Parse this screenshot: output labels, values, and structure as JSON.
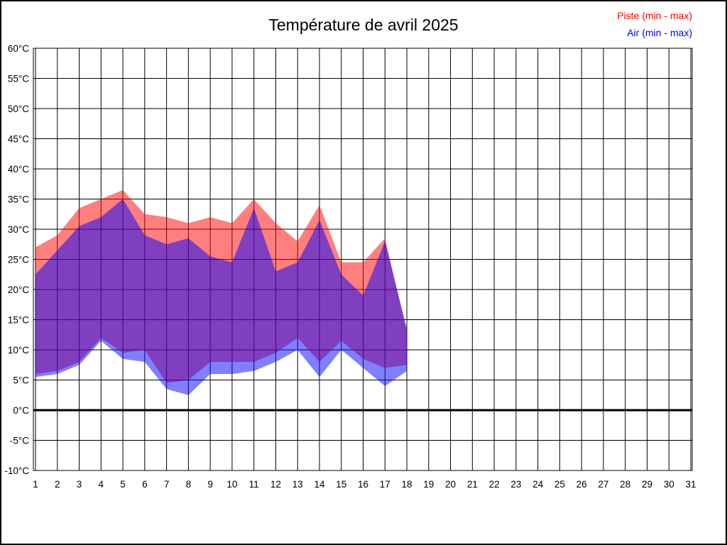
{
  "page": {
    "background": "#ffffff",
    "frame_color": "#000000"
  },
  "chart_data": {
    "type": "area",
    "title": "Température de avril 2025",
    "legend": [
      {
        "label": "Piste (min - max)",
        "color": "#ff0000"
      },
      {
        "label": "Air (min - max)",
        "color": "#0000ff"
      }
    ],
    "legend_position": "top-right",
    "grid": true,
    "ylim": [
      -10,
      60
    ],
    "y_step": 5,
    "y_ticks": [
      -10,
      -5,
      0,
      5,
      10,
      15,
      20,
      25,
      30,
      35,
      40,
      45,
      50,
      55,
      60
    ],
    "y_tick_labels": [
      "-10°C",
      "-5°C",
      "0°C",
      "5°C",
      "10°C",
      "15°C",
      "20°C",
      "25°C",
      "30°C",
      "35°C",
      "40°C",
      "45°C",
      "50°C",
      "55°C",
      "60°C"
    ],
    "xlim": [
      1,
      31
    ],
    "x_tick_labels": [
      "1",
      "2",
      "3",
      "4",
      "5",
      "6",
      "7",
      "8",
      "9",
      "10",
      "11",
      "12",
      "13",
      "14",
      "15",
      "16",
      "17",
      "18",
      "19",
      "20",
      "21",
      "22",
      "23",
      "24",
      "25",
      "26",
      "27",
      "28",
      "29",
      "30",
      "31"
    ],
    "days": [
      1,
      2,
      3,
      4,
      5,
      6,
      7,
      8,
      9,
      10,
      11,
      12,
      13,
      14,
      15,
      16,
      17,
      18
    ],
    "series": [
      {
        "name": "piste_min",
        "values": [
          6,
          6.5,
          8,
          12,
          9.5,
          10,
          4.5,
          5,
          8,
          8,
          8,
          9.5,
          12,
          8,
          11.5,
          8.5,
          7,
          7.5
        ]
      },
      {
        "name": "piste_max",
        "values": [
          27,
          29,
          33.5,
          35,
          36.5,
          32.5,
          32,
          31,
          32,
          31,
          35,
          31,
          28,
          34,
          24.5,
          24.5,
          28.5,
          13
        ]
      },
      {
        "name": "air_min",
        "values": [
          5.5,
          6,
          7.5,
          11.5,
          8.5,
          8,
          3.5,
          2.5,
          6,
          6,
          6.5,
          8,
          10,
          5.5,
          10,
          7,
          4,
          6.5
        ]
      },
      {
        "name": "air_max",
        "values": [
          22.5,
          26.5,
          30.5,
          32,
          35,
          29,
          27.5,
          28.5,
          25.5,
          24.5,
          33.5,
          23,
          24.5,
          31.5,
          22.5,
          19,
          28,
          13.5
        ]
      }
    ],
    "zero_line": 0,
    "colors": {
      "piste": "#ff0000",
      "air": "#0000ff",
      "fill_opacity": 0.5,
      "grid": "#000000",
      "zero_line": "#000000"
    }
  }
}
